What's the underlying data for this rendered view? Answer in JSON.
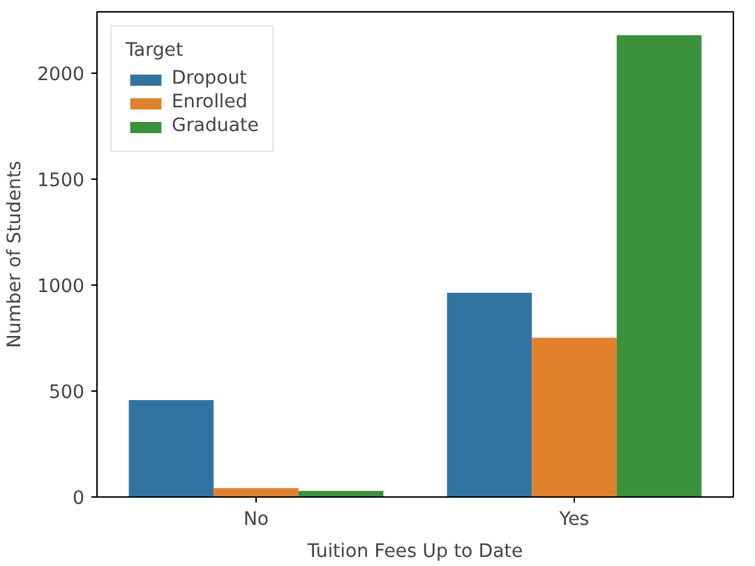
{
  "chart_data": {
    "type": "bar",
    "xlabel": "Tuition Fees Up to Date",
    "ylabel": "Number of Students",
    "legend_title": "Target",
    "categories": [
      "No",
      "Yes"
    ],
    "series": [
      {
        "name": "Dropout",
        "color": "#3274a1",
        "values": [
          457,
          964
        ]
      },
      {
        "name": "Enrolled",
        "color": "#e1812c",
        "values": [
          42,
          752
        ]
      },
      {
        "name": "Graduate",
        "color": "#3a923a",
        "values": [
          29,
          2180
        ]
      }
    ],
    "ylim": [
      0,
      2290
    ],
    "yticks": [
      0,
      500,
      1000,
      1500,
      2000
    ],
    "grid": false,
    "legend": "top left"
  }
}
